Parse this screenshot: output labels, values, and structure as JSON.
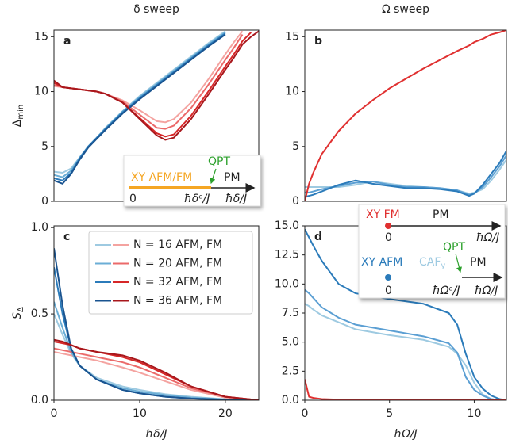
{
  "chart_data": [
    {
      "type": "line",
      "title": "δ sweep",
      "panel_label": "a",
      "ylabel": "Δ",
      "ylabel_sub": "min",
      "xlim": [
        0,
        23.9
      ],
      "ylim": [
        0,
        15.6
      ],
      "yticks": [
        0,
        5,
        10,
        15
      ],
      "x": [
        0,
        1,
        2,
        3,
        4,
        5,
        6,
        8,
        10,
        12,
        13,
        14,
        16,
        18,
        20,
        21,
        22,
        23,
        23.9
      ],
      "series": [
        {
          "lines": [
            {
              "color": "#9ecae1",
              "values": [
                2.7,
                2.6,
                3.0,
                4.0,
                5.0,
                5.8,
                6.7,
                8.2,
                9.6,
                10.8,
                11.4,
                12.0,
                13.2,
                14.4,
                15.5,
                null,
                null,
                null,
                null
              ]
            },
            {
              "color": "#f4a3a0",
              "values": [
                10.5,
                10.4,
                10.3,
                10.2,
                10.1,
                10.0,
                9.8,
                9.2,
                8.3,
                7.3,
                7.2,
                7.5,
                9.0,
                11.1,
                13.4,
                14.5,
                15.5,
                null,
                null
              ]
            }
          ]
        },
        {
          "lines": [
            {
              "color": "#6baed6",
              "values": [
                2.4,
                2.2,
                2.8,
                4.0,
                5.0,
                5.8,
                6.6,
                8.2,
                9.5,
                10.7,
                11.3,
                11.9,
                13.1,
                14.3,
                15.4,
                null,
                null,
                null,
                null
              ]
            },
            {
              "color": "#eb6a6a",
              "values": [
                10.6,
                10.4,
                10.3,
                10.2,
                10.1,
                10.0,
                9.8,
                9.1,
                7.9,
                6.7,
                6.6,
                6.9,
                8.5,
                10.6,
                12.9,
                14.0,
                15.2,
                null,
                null
              ]
            }
          ]
        },
        {
          "lines": [
            {
              "color": "#2b7bba",
              "values": [
                2.1,
                1.9,
                2.6,
                3.9,
                5.0,
                5.8,
                6.6,
                8.1,
                9.4,
                10.6,
                11.2,
                11.8,
                13.0,
                14.2,
                15.3,
                null,
                null,
                null,
                null
              ]
            },
            {
              "color": "#d62728",
              "values": [
                10.8,
                10.4,
                10.3,
                10.2,
                10.1,
                10.0,
                9.8,
                9.0,
                7.6,
                6.2,
                5.9,
                6.1,
                7.8,
                10.0,
                12.3,
                13.4,
                14.6,
                15.4,
                null
              ]
            }
          ]
        },
        {
          "lines": [
            {
              "color": "#1a5490",
              "values": [
                1.9,
                1.6,
                2.5,
                3.8,
                4.9,
                5.7,
                6.5,
                8.0,
                9.3,
                10.5,
                11.1,
                11.7,
                12.9,
                14.1,
                15.2,
                null,
                null,
                null,
                null
              ]
            },
            {
              "color": "#a8171c",
              "values": [
                11.0,
                10.4,
                10.3,
                10.2,
                10.1,
                10.0,
                9.8,
                9.0,
                7.5,
                6.0,
                5.6,
                5.8,
                7.5,
                9.7,
                12.0,
                13.1,
                14.3,
                15.0,
                15.5
              ]
            }
          ]
        }
      ],
      "inset": {
        "qpt": "QPT",
        "phase1": "XY AFM/FM",
        "phase2": "PM",
        "origin": "0",
        "critical": "ħδᶜ/J",
        "axis": "ħδ/J"
      }
    },
    {
      "type": "line",
      "title": "Ω sweep",
      "panel_label": "b",
      "xlim": [
        0,
        11.9
      ],
      "ylim": [
        0,
        15.6
      ],
      "yticks": [
        0,
        5,
        10,
        15
      ],
      "x": [
        0,
        0.25,
        0.5,
        1,
        2,
        3,
        4,
        5,
        6,
        7,
        8,
        9,
        9.7,
        10,
        10.5,
        11,
        11.5,
        11.9
      ],
      "series": [
        {
          "color": "#9ecae1",
          "values": [
            1.3,
            1.3,
            1.3,
            1.3,
            1.3,
            1.5,
            1.8,
            1.6,
            1.4,
            1.3,
            1.2,
            1.0,
            0.7,
            0.8,
            1.1,
            1.9,
            2.9,
            3.8
          ]
        },
        {
          "color": "#5b9fd3",
          "values": [
            0.8,
            0.8,
            0.9,
            1.1,
            1.4,
            1.7,
            1.8,
            1.5,
            1.3,
            1.3,
            1.2,
            1.0,
            0.6,
            0.7,
            1.3,
            2.2,
            3.2,
            4.2
          ]
        },
        {
          "color": "#2b7bba",
          "values": [
            0.4,
            0.5,
            0.6,
            0.9,
            1.5,
            1.9,
            1.6,
            1.4,
            1.2,
            1.2,
            1.1,
            0.9,
            0.5,
            0.7,
            1.5,
            2.5,
            3.5,
            4.6
          ]
        },
        {
          "color": "#e03030",
          "values": [
            0,
            1.6,
            2.6,
            4.3,
            6.4,
            8.0,
            9.2,
            10.3,
            11.2,
            12.1,
            12.9,
            13.7,
            14.2,
            14.5,
            14.8,
            15.2,
            15.4,
            15.6
          ]
        }
      ],
      "inset": {
        "top": {
          "phase1": "XY FM",
          "phase2": "PM",
          "origin": "0",
          "axis": "ħΩ/J"
        },
        "bottom": {
          "qpt": "QPT",
          "phase1": "XY AFM",
          "phase2": "CAF",
          "phase2_sub": "y",
          "phase3": "PM",
          "origin": "0",
          "critical": "ħΩᶜ/J",
          "axis": "ħΩ/J"
        }
      }
    },
    {
      "type": "line",
      "panel_label": "c",
      "ylabel": "S",
      "ylabel_sub": "Δ",
      "xlabel": "ħδ/J",
      "xlim": [
        0,
        23.9
      ],
      "ylim": [
        0,
        1.01
      ],
      "xticks": [
        0,
        10,
        20
      ],
      "yticks": [
        {
          "value": 0,
          "label": "0.0"
        },
        {
          "value": 0.5,
          "label": "0.5"
        },
        {
          "value": 1,
          "label": "1.0"
        }
      ],
      "x": [
        0,
        1,
        2,
        3,
        5,
        8,
        10,
        13,
        16,
        20,
        23.9
      ],
      "series": [
        {
          "name": "N = 16 AFM, FM",
          "lines": [
            {
              "color": "#9ecae1",
              "values": [
                0.5,
                0.38,
                0.27,
                0.2,
                0.13,
                0.08,
                0.06,
                0.035,
                0.02,
                0.006,
                0
              ]
            },
            {
              "color": "#f4a3a0",
              "values": [
                0.28,
                0.27,
                0.26,
                0.25,
                0.23,
                0.19,
                0.16,
                0.11,
                0.06,
                0.015,
                0
              ]
            }
          ]
        },
        {
          "name": "N = 20 AFM, FM",
          "lines": [
            {
              "color": "#6baed6",
              "values": [
                0.57,
                0.42,
                0.28,
                0.2,
                0.12,
                0.07,
                0.05,
                0.03,
                0.015,
                0.005,
                0
              ]
            },
            {
              "color": "#eb6a6a",
              "values": [
                0.3,
                0.29,
                0.28,
                0.27,
                0.25,
                0.22,
                0.19,
                0.13,
                0.07,
                0.02,
                0
              ]
            }
          ]
        },
        {
          "name": "N = 32 AFM, FM",
          "lines": [
            {
              "color": "#2b7bba",
              "values": [
                0.77,
                0.5,
                0.3,
                0.2,
                0.12,
                0.06,
                0.04,
                0.02,
                0.01,
                0.003,
                0
              ]
            },
            {
              "color": "#d62728",
              "values": [
                0.34,
                0.33,
                0.32,
                0.3,
                0.28,
                0.25,
                0.22,
                0.15,
                0.08,
                0.02,
                0
              ]
            }
          ]
        },
        {
          "name": "N = 36 AFM, FM",
          "lines": [
            {
              "color": "#1a5490",
              "values": [
                0.88,
                0.55,
                0.3,
                0.2,
                0.12,
                0.06,
                0.04,
                0.02,
                0.01,
                0.003,
                0
              ]
            },
            {
              "color": "#a8171c",
              "values": [
                0.35,
                0.34,
                0.32,
                0.3,
                0.28,
                0.26,
                0.23,
                0.16,
                0.08,
                0.02,
                0
              ]
            }
          ]
        }
      ]
    },
    {
      "type": "line",
      "panel_label": "d",
      "xlabel": "ħΩ/J",
      "xlim": [
        0,
        11.9
      ],
      "ylim": [
        0,
        15
      ],
      "xticks": [
        0,
        5,
        10
      ],
      "yticks": [
        {
          "value": 0,
          "label": "0.0"
        },
        {
          "value": 2.5,
          "label": "2.5"
        },
        {
          "value": 5,
          "label": "5.0"
        },
        {
          "value": 7.5,
          "label": "7.5"
        },
        {
          "value": 10,
          "label": "10.0"
        },
        {
          "value": 12.5,
          "label": "12.5"
        },
        {
          "value": 15,
          "label": "15.0"
        }
      ],
      "x": [
        0,
        0.25,
        0.5,
        1,
        2,
        3,
        5,
        7,
        8.5,
        9,
        9.5,
        10,
        10.5,
        11,
        11.5,
        11.9
      ],
      "series": [
        {
          "color": "#9ecae1",
          "values": [
            8.3,
            8.1,
            7.8,
            7.3,
            6.7,
            6.1,
            5.6,
            5.2,
            4.6,
            4.0,
            3.0,
            1.5,
            0.5,
            0.1,
            0,
            0
          ]
        },
        {
          "color": "#5b9fd3",
          "values": [
            9.5,
            9.2,
            8.8,
            8.0,
            7.1,
            6.5,
            6.0,
            5.5,
            4.9,
            4.1,
            2.0,
            0.9,
            0.4,
            0.1,
            0,
            0
          ]
        },
        {
          "color": "#2b7bba",
          "values": [
            14.7,
            14.0,
            13.3,
            12.0,
            10.0,
            9.2,
            8.7,
            8.3,
            7.5,
            6.5,
            4.0,
            2.0,
            1.0,
            0.4,
            0.1,
            0
          ]
        },
        {
          "color": "#e03030",
          "values": [
            1.8,
            0.3,
            0.2,
            0.1,
            0.05,
            0.02,
            0,
            0,
            0,
            0,
            0,
            0,
            0,
            0,
            0,
            0
          ]
        }
      ]
    }
  ]
}
